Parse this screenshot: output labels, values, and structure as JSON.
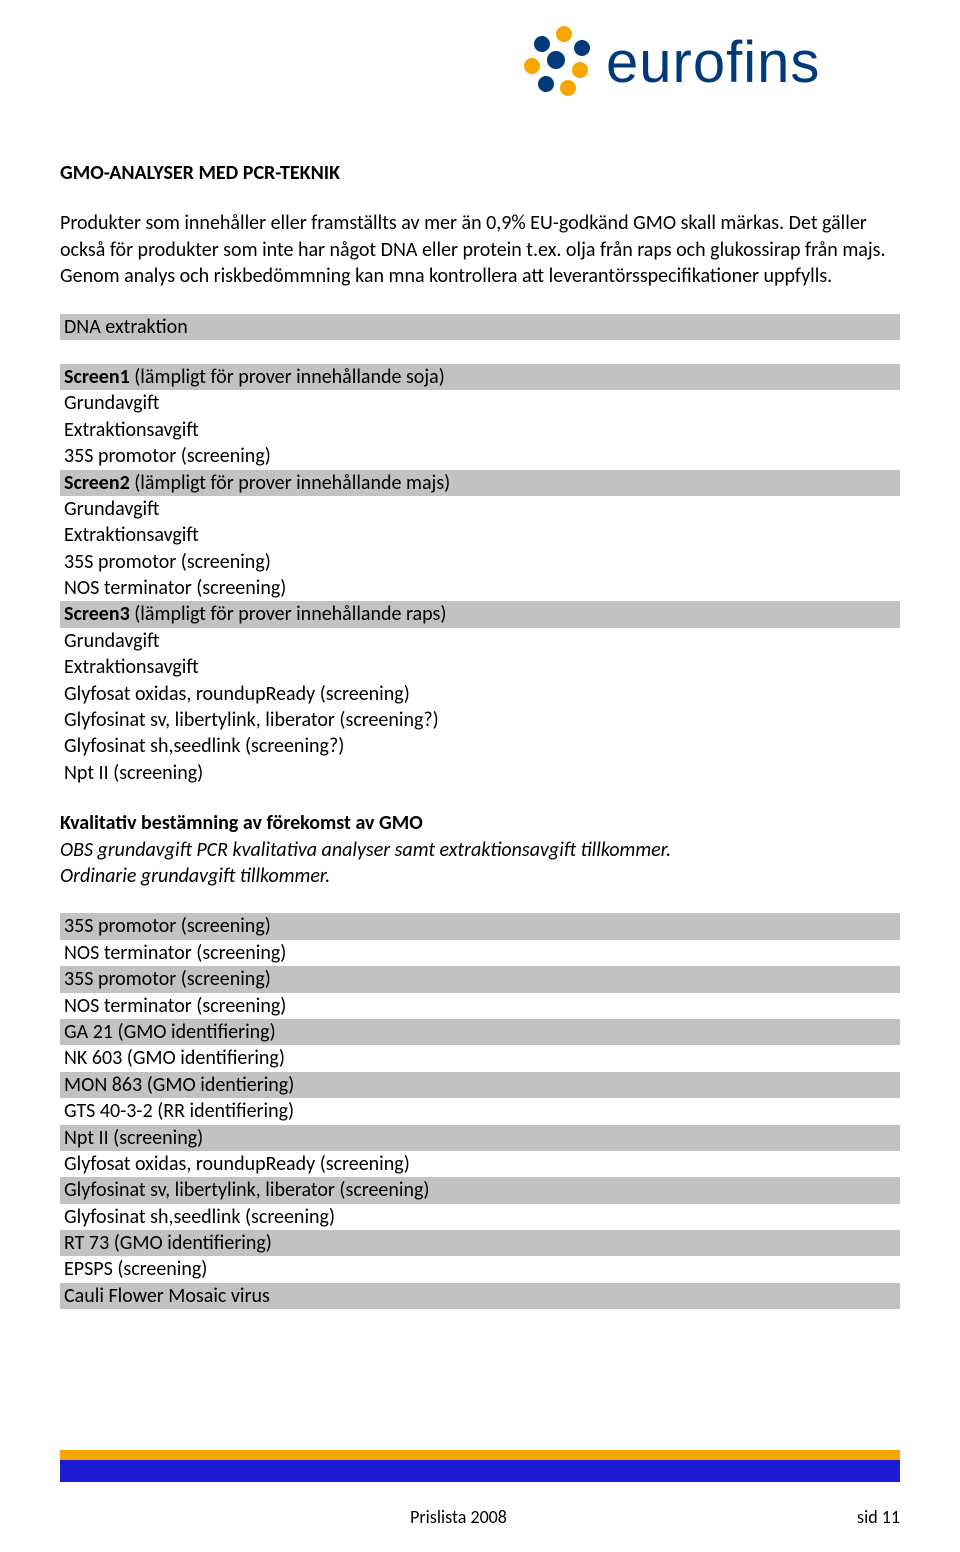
{
  "logo": {
    "text": "eurofins",
    "text_color": "#003a7a",
    "dot_colors": {
      "blue": "#003a7a",
      "orange": "#f7a600"
    }
  },
  "heading": "GMO-ANALYSER MED PCR-TEKNIK",
  "intro": "Produkter som innehåller eller framställts av mer än 0,9% EU-godkänd GMO skall märkas. Det gäller också för produkter som inte har något DNA eller protein t.ex. olja från raps och glukossirap från majs. Genom analys och riskbedömmning kan mna kontrollera att leverantörsspecifikationer uppfylls.",
  "block1": {
    "header": "DNA extraktion",
    "rows": [
      {
        "text": "Screen1 (lämpligt för prover innehållande soja)",
        "shaded": true,
        "bold": true
      },
      {
        "text": "Grundavgift",
        "shaded": false
      },
      {
        "text": "Extraktionsavgift",
        "shaded": false
      },
      {
        "text": "35S promotor (screening)",
        "shaded": false
      },
      {
        "text": "Screen2 (lämpligt för prover innehållande majs)",
        "shaded": true,
        "bold": true
      },
      {
        "text": "Grundavgift",
        "shaded": false
      },
      {
        "text": "Extraktionsavgift",
        "shaded": false
      },
      {
        "text": "35S promotor (screening)",
        "shaded": false
      },
      {
        "text": "NOS terminator (screening)",
        "shaded": false
      },
      {
        "text": "Screen3 (lämpligt för prover innehållande raps)",
        "shaded": true,
        "bold": true
      },
      {
        "text": "Grundavgift",
        "shaded": false
      },
      {
        "text": "Extraktionsavgift",
        "shaded": false
      },
      {
        "text": "Glyfosat oxidas, roundupReady (screening)",
        "shaded": false
      },
      {
        "text": "Glyfosinat sv, libertylink, liberator (screening?)",
        "shaded": false
      },
      {
        "text": "Glyfosinat sh,seedlink (screening?)",
        "shaded": false
      },
      {
        "text": "Npt II (screening)",
        "shaded": false
      }
    ]
  },
  "block2": {
    "title": "Kvalitativ bestämning av förekomst av GMO",
    "note1": "OBS grundavgift PCR kvalitativa analyser samt extraktionsavgift tillkommer.",
    "note2": "Ordinarie grundavgift tillkommer.",
    "rows": [
      {
        "text": "35S promotor (screening)",
        "shaded": true
      },
      {
        "text": "NOS terminator (screening)",
        "shaded": false
      },
      {
        "text": "35S promotor (screening)",
        "shaded": true
      },
      {
        "text": "NOS terminator (screening)",
        "shaded": false
      },
      {
        "text": "GA 21 (GMO identifiering)",
        "shaded": true
      },
      {
        "text": "NK 603 (GMO identifiering)",
        "shaded": false
      },
      {
        "text": "MON 863 (GMO identiering)",
        "shaded": true
      },
      {
        "text": "GTS 40-3-2 (RR identifiering)",
        "shaded": false
      },
      {
        "text": "Npt II (screening)",
        "shaded": true
      },
      {
        "text": "Glyfosat oxidas, roundupReady (screening)",
        "shaded": false
      },
      {
        "text": "Glyfosinat sv, libertylink, liberator (screening)",
        "shaded": true
      },
      {
        "text": "Glyfosinat sh,seedlink (screening)",
        "shaded": false
      },
      {
        "text": "RT 73 (GMO identifiering)",
        "shaded": true
      },
      {
        "text": "EPSPS (screening)",
        "shaded": false
      },
      {
        "text": "Cauli Flower Mosaic virus",
        "shaded": true
      }
    ]
  },
  "footer": {
    "left": "Prislista 2008",
    "right": "sid 11",
    "stripe_orange": "#f7a600",
    "stripe_blue": "#1b1bd6"
  },
  "colors": {
    "shaded_row": "#c2c2c2",
    "text": "#000000",
    "background": "#ffffff"
  }
}
